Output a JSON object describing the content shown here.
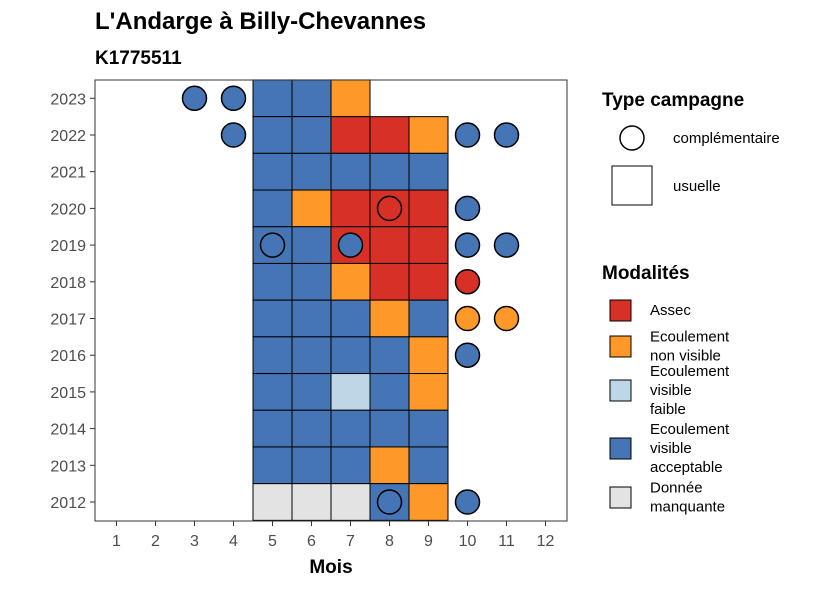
{
  "chart_data": {
    "type": "heatmap",
    "title": "L'Andarge à Billy-Chevannes",
    "subtitle": "K1775511",
    "xlabel": "Mois",
    "ylabel": "",
    "x_ticks": [
      1,
      2,
      3,
      4,
      5,
      6,
      7,
      8,
      9,
      10,
      11,
      12
    ],
    "y_ticks": [
      2012,
      2013,
      2014,
      2015,
      2016,
      2017,
      2018,
      2019,
      2020,
      2021,
      2022,
      2023
    ],
    "grid": false,
    "colors": {
      "Assec": "#d73027",
      "Ecoulement non visible": "#fe9929",
      "Ecoulement visible faible": "#bdd7e7",
      "Ecoulement visible acceptable": "#4575b4",
      "Donnée manquante": "#e3e3e3"
    },
    "legend_type": {
      "title": "Type campagne",
      "placement": "right",
      "items": [
        {
          "label": "complémentaire",
          "shape": "circle"
        },
        {
          "label": "usuelle",
          "shape": "square"
        }
      ]
    },
    "legend_modalites": {
      "title": "Modalités",
      "placement": "right",
      "items": [
        {
          "key": "Assec",
          "lines": [
            "Assec"
          ]
        },
        {
          "key": "Ecoulement non visible",
          "lines": [
            "Ecoulement",
            "non visible"
          ]
        },
        {
          "key": "Ecoulement visible faible",
          "lines": [
            "Ecoulement",
            "visible",
            "faible"
          ]
        },
        {
          "key": "Ecoulement visible acceptable",
          "lines": [
            "Ecoulement",
            "visible",
            "acceptable"
          ]
        },
        {
          "key": "Donnée manquante",
          "lines": [
            "Donnée",
            "manquante"
          ]
        }
      ]
    },
    "usuelle": [
      {
        "year": 2023,
        "month": 5,
        "value": "Ecoulement visible acceptable"
      },
      {
        "year": 2023,
        "month": 6,
        "value": "Ecoulement visible acceptable"
      },
      {
        "year": 2023,
        "month": 7,
        "value": "Ecoulement non visible"
      },
      {
        "year": 2022,
        "month": 5,
        "value": "Ecoulement visible acceptable"
      },
      {
        "year": 2022,
        "month": 6,
        "value": "Ecoulement visible acceptable"
      },
      {
        "year": 2022,
        "month": 7,
        "value": "Assec"
      },
      {
        "year": 2022,
        "month": 8,
        "value": "Assec"
      },
      {
        "year": 2022,
        "month": 9,
        "value": "Ecoulement non visible"
      },
      {
        "year": 2021,
        "month": 5,
        "value": "Ecoulement visible acceptable"
      },
      {
        "year": 2021,
        "month": 6,
        "value": "Ecoulement visible acceptable"
      },
      {
        "year": 2021,
        "month": 7,
        "value": "Ecoulement visible acceptable"
      },
      {
        "year": 2021,
        "month": 8,
        "value": "Ecoulement visible acceptable"
      },
      {
        "year": 2021,
        "month": 9,
        "value": "Ecoulement visible acceptable"
      },
      {
        "year": 2020,
        "month": 5,
        "value": "Ecoulement visible acceptable"
      },
      {
        "year": 2020,
        "month": 6,
        "value": "Ecoulement non visible"
      },
      {
        "year": 2020,
        "month": 7,
        "value": "Assec"
      },
      {
        "year": 2020,
        "month": 8,
        "value": "Assec"
      },
      {
        "year": 2020,
        "month": 9,
        "value": "Assec"
      },
      {
        "year": 2019,
        "month": 5,
        "value": "Ecoulement visible acceptable"
      },
      {
        "year": 2019,
        "month": 6,
        "value": "Ecoulement visible acceptable"
      },
      {
        "year": 2019,
        "month": 7,
        "value": "Assec"
      },
      {
        "year": 2019,
        "month": 8,
        "value": "Assec"
      },
      {
        "year": 2019,
        "month": 9,
        "value": "Assec"
      },
      {
        "year": 2018,
        "month": 5,
        "value": "Ecoulement visible acceptable"
      },
      {
        "year": 2018,
        "month": 6,
        "value": "Ecoulement visible acceptable"
      },
      {
        "year": 2018,
        "month": 7,
        "value": "Ecoulement non visible"
      },
      {
        "year": 2018,
        "month": 8,
        "value": "Assec"
      },
      {
        "year": 2018,
        "month": 9,
        "value": "Assec"
      },
      {
        "year": 2017,
        "month": 5,
        "value": "Ecoulement visible acceptable"
      },
      {
        "year": 2017,
        "month": 6,
        "value": "Ecoulement visible acceptable"
      },
      {
        "year": 2017,
        "month": 7,
        "value": "Ecoulement visible acceptable"
      },
      {
        "year": 2017,
        "month": 8,
        "value": "Ecoulement non visible"
      },
      {
        "year": 2017,
        "month": 9,
        "value": "Ecoulement visible acceptable"
      },
      {
        "year": 2016,
        "month": 5,
        "value": "Ecoulement visible acceptable"
      },
      {
        "year": 2016,
        "month": 6,
        "value": "Ecoulement visible acceptable"
      },
      {
        "year": 2016,
        "month": 7,
        "value": "Ecoulement visible acceptable"
      },
      {
        "year": 2016,
        "month": 8,
        "value": "Ecoulement visible acceptable"
      },
      {
        "year": 2016,
        "month": 9,
        "value": "Ecoulement non visible"
      },
      {
        "year": 2015,
        "month": 5,
        "value": "Ecoulement visible acceptable"
      },
      {
        "year": 2015,
        "month": 6,
        "value": "Ecoulement visible acceptable"
      },
      {
        "year": 2015,
        "month": 7,
        "value": "Ecoulement visible faible"
      },
      {
        "year": 2015,
        "month": 8,
        "value": "Ecoulement visible acceptable"
      },
      {
        "year": 2015,
        "month": 9,
        "value": "Ecoulement non visible"
      },
      {
        "year": 2014,
        "month": 5,
        "value": "Ecoulement visible acceptable"
      },
      {
        "year": 2014,
        "month": 6,
        "value": "Ecoulement visible acceptable"
      },
      {
        "year": 2014,
        "month": 7,
        "value": "Ecoulement visible acceptable"
      },
      {
        "year": 2014,
        "month": 8,
        "value": "Ecoulement visible acceptable"
      },
      {
        "year": 2014,
        "month": 9,
        "value": "Ecoulement visible acceptable"
      },
      {
        "year": 2013,
        "month": 5,
        "value": "Ecoulement visible acceptable"
      },
      {
        "year": 2013,
        "month": 6,
        "value": "Ecoulement visible acceptable"
      },
      {
        "year": 2013,
        "month": 7,
        "value": "Ecoulement visible acceptable"
      },
      {
        "year": 2013,
        "month": 8,
        "value": "Ecoulement non visible"
      },
      {
        "year": 2013,
        "month": 9,
        "value": "Ecoulement visible acceptable"
      },
      {
        "year": 2012,
        "month": 5,
        "value": "Donnée manquante"
      },
      {
        "year": 2012,
        "month": 6,
        "value": "Donnée manquante"
      },
      {
        "year": 2012,
        "month": 7,
        "value": "Donnée manquante"
      },
      {
        "year": 2012,
        "month": 8,
        "value": "Ecoulement visible acceptable"
      },
      {
        "year": 2012,
        "month": 9,
        "value": "Ecoulement non visible"
      }
    ],
    "complementaire": [
      {
        "year": 2023,
        "month": 3,
        "value": "Ecoulement visible acceptable"
      },
      {
        "year": 2023,
        "month": 4,
        "value": "Ecoulement visible acceptable"
      },
      {
        "year": 2022,
        "month": 4,
        "value": "Ecoulement visible acceptable"
      },
      {
        "year": 2022,
        "month": 10,
        "value": "Ecoulement visible acceptable"
      },
      {
        "year": 2022,
        "month": 11,
        "value": "Ecoulement visible acceptable"
      },
      {
        "year": 2020,
        "month": 8,
        "value": "Assec"
      },
      {
        "year": 2020,
        "month": 10,
        "value": "Ecoulement visible acceptable"
      },
      {
        "year": 2019,
        "month": 5,
        "value": "Ecoulement visible acceptable"
      },
      {
        "year": 2019,
        "month": 7,
        "value": "Ecoulement visible acceptable"
      },
      {
        "year": 2019,
        "month": 10,
        "value": "Ecoulement visible acceptable"
      },
      {
        "year": 2019,
        "month": 11,
        "value": "Ecoulement visible acceptable"
      },
      {
        "year": 2018,
        "month": 10,
        "value": "Assec"
      },
      {
        "year": 2017,
        "month": 10,
        "value": "Ecoulement non visible"
      },
      {
        "year": 2017,
        "month": 11,
        "value": "Ecoulement non visible"
      },
      {
        "year": 2016,
        "month": 10,
        "value": "Ecoulement visible acceptable"
      },
      {
        "year": 2012,
        "month": 8,
        "value": "Ecoulement visible acceptable"
      },
      {
        "year": 2012,
        "month": 10,
        "value": "Ecoulement visible acceptable"
      }
    ]
  }
}
